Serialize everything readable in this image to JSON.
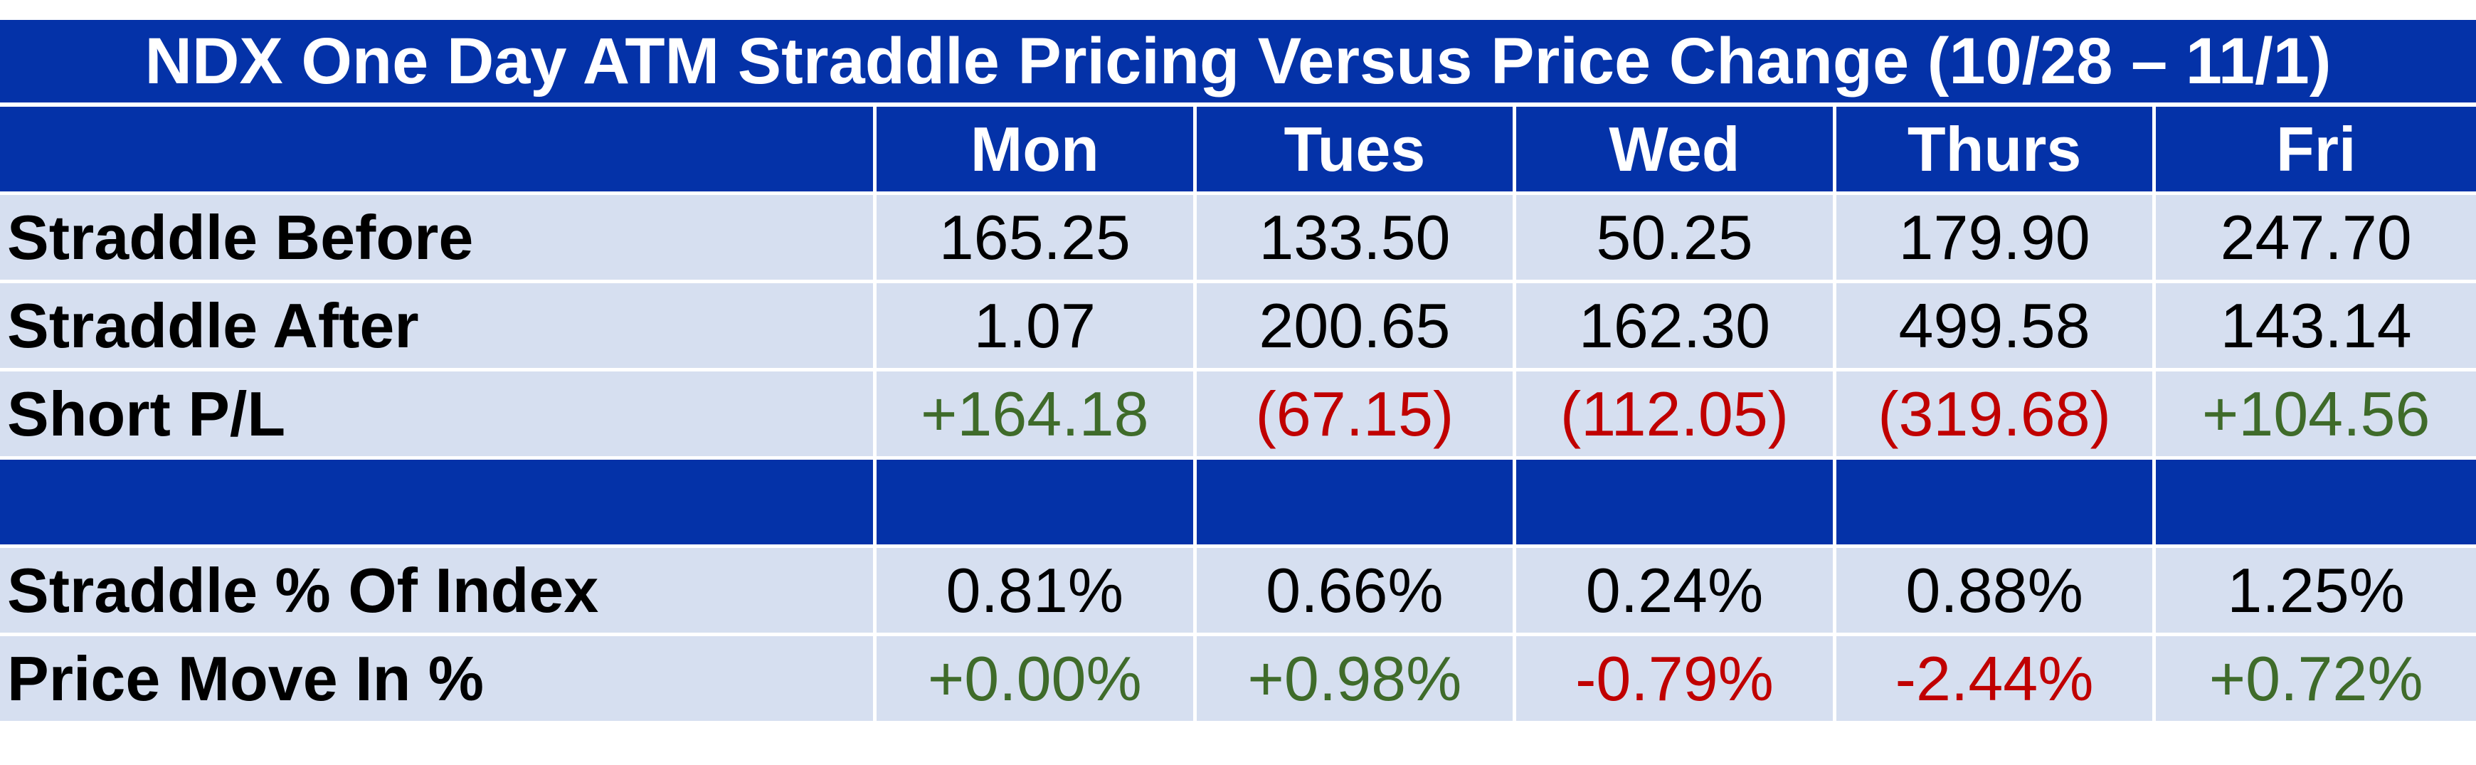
{
  "title": "NDX One Day ATM Straddle Pricing Versus Price Change (10/28 – 11/1)",
  "header": {
    "label": "",
    "days": [
      "Mon",
      "Tues",
      "Wed",
      "Thurs",
      "Fri"
    ]
  },
  "rows": {
    "straddle_before": {
      "label": "Straddle Before",
      "values": [
        "165.25",
        "133.50",
        "50.25",
        "179.90",
        "247.70"
      ]
    },
    "straddle_after": {
      "label": "Straddle After",
      "values": [
        "1.07",
        "200.65",
        "162.30",
        "499.58",
        "143.14"
      ]
    },
    "short_pl": {
      "label": "Short P/L",
      "values": [
        "+164.18",
        "(67.15)",
        "(112.05)",
        "(319.68)",
        "+104.56"
      ],
      "signs": [
        "pos",
        "neg",
        "neg",
        "neg",
        "pos"
      ]
    },
    "straddle_pct": {
      "label": "Straddle % Of Index",
      "values": [
        "0.81%",
        "0.66%",
        "0.24%",
        "0.88%",
        "1.25%"
      ]
    },
    "price_move": {
      "label": "Price Move In %",
      "values": [
        "+0.00%",
        "+0.98%",
        "-0.79%",
        "-2.44%",
        "+0.72%"
      ],
      "signs": [
        "pos",
        "pos",
        "neg",
        "neg",
        "pos"
      ]
    }
  },
  "colors": {
    "header_blue": "#0432a8",
    "row_light": "#d6dff0",
    "positive": "#3f6b2a",
    "negative": "#c00000"
  }
}
